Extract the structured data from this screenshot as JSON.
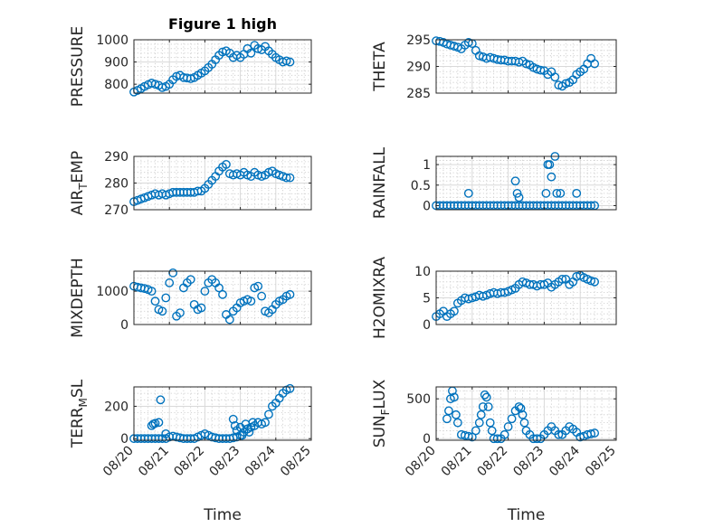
{
  "chart_data": [
    {
      "type": "scatter",
      "title": "Figure 1 high",
      "ylabel": "PRESSURE",
      "xlabel": "",
      "xlim": [
        0,
        5
      ],
      "ylim": [
        760,
        1000
      ],
      "yticks": [
        800,
        900,
        1000
      ],
      "xticks": [
        0,
        1,
        2,
        3,
        4,
        5
      ],
      "xticklabels": [],
      "grid": true,
      "marker_color": "#0072BD",
      "series": [
        {
          "x": [
            0.0,
            0.1,
            0.2,
            0.3,
            0.4,
            0.5,
            0.6,
            0.7,
            0.8,
            0.9,
            1.0,
            1.1,
            1.2,
            1.3,
            1.4,
            1.5,
            1.6,
            1.7,
            1.8,
            1.9,
            2.0,
            2.1,
            2.2,
            2.3,
            2.4,
            2.5,
            2.6,
            2.7,
            2.8,
            2.9,
            3.0,
            3.1,
            3.2,
            3.3,
            3.4,
            3.5,
            3.6,
            3.7,
            3.8,
            3.9,
            4.0,
            4.1,
            4.2,
            4.3,
            4.4
          ],
          "y": [
            765,
            772,
            780,
            790,
            798,
            805,
            800,
            795,
            785,
            790,
            800,
            820,
            835,
            840,
            830,
            828,
            825,
            830,
            840,
            850,
            860,
            875,
            890,
            910,
            930,
            945,
            950,
            940,
            920,
            930,
            920,
            935,
            960,
            940,
            975,
            960,
            955,
            970,
            950,
            935,
            920,
            910,
            900,
            905,
            900
          ]
        }
      ]
    },
    {
      "type": "scatter",
      "title": "",
      "ylabel": "THETA",
      "xlabel": "",
      "xlim": [
        0,
        5
      ],
      "ylim": [
        285,
        295
      ],
      "yticks": [
        285,
        290,
        295
      ],
      "xticks": [
        0,
        1,
        2,
        3,
        4,
        5
      ],
      "xticklabels": [],
      "grid": true,
      "marker_color": "#0072BD",
      "series": [
        {
          "x": [
            0.0,
            0.1,
            0.2,
            0.3,
            0.4,
            0.5,
            0.6,
            0.7,
            0.8,
            0.9,
            1.0,
            1.1,
            1.2,
            1.3,
            1.4,
            1.5,
            1.6,
            1.7,
            1.8,
            1.9,
            2.0,
            2.1,
            2.2,
            2.3,
            2.4,
            2.5,
            2.6,
            2.7,
            2.8,
            2.9,
            3.0,
            3.1,
            3.2,
            3.3,
            3.4,
            3.5,
            3.6,
            3.7,
            3.8,
            3.9,
            4.0,
            4.1,
            4.2,
            4.3,
            4.4
          ],
          "y": [
            294.8,
            294.7,
            294.5,
            294.2,
            294.0,
            293.8,
            293.6,
            293.3,
            294.0,
            294.5,
            294.3,
            293.0,
            292.0,
            291.8,
            291.5,
            291.7,
            291.5,
            291.3,
            291.2,
            291.2,
            291.0,
            291.0,
            291.0,
            290.8,
            291.0,
            290.5,
            290.3,
            289.8,
            289.5,
            289.3,
            289.2,
            288.5,
            289.0,
            288.0,
            286.5,
            286.3,
            286.8,
            287.0,
            287.5,
            288.5,
            289.0,
            289.5,
            290.5,
            291.5,
            290.5
          ]
        }
      ]
    },
    {
      "type": "scatter",
      "title": "",
      "ylabel": "AIR_TEMP",
      "ylabel_parts": [
        "AIR",
        "T",
        "EMP"
      ],
      "xlabel": "",
      "xlim": [
        0,
        5
      ],
      "ylim": [
        270,
        290
      ],
      "yticks": [
        270,
        280,
        290
      ],
      "xticks": [
        0,
        1,
        2,
        3,
        4,
        5
      ],
      "xticklabels": [],
      "grid": true,
      "marker_color": "#0072BD",
      "series": [
        {
          "x": [
            0.0,
            0.1,
            0.2,
            0.3,
            0.4,
            0.5,
            0.6,
            0.7,
            0.8,
            0.9,
            1.0,
            1.1,
            1.2,
            1.3,
            1.4,
            1.5,
            1.6,
            1.7,
            1.8,
            1.9,
            2.0,
            2.1,
            2.2,
            2.3,
            2.4,
            2.5,
            2.6,
            2.7,
            2.8,
            2.9,
            3.0,
            3.1,
            3.2,
            3.3,
            3.4,
            3.5,
            3.6,
            3.7,
            3.8,
            3.9,
            4.0,
            4.1,
            4.2,
            4.3,
            4.4
          ],
          "y": [
            273,
            273.5,
            274,
            274.5,
            275,
            275.5,
            276,
            275.5,
            276,
            275.5,
            276,
            276.5,
            276.5,
            276.5,
            276.5,
            276.5,
            276.5,
            276.5,
            277,
            277,
            278,
            279.5,
            281,
            282.5,
            284.5,
            286,
            287,
            283.5,
            283,
            283.5,
            283,
            284,
            283,
            282.5,
            284,
            283,
            282.5,
            283,
            284,
            284.5,
            283.5,
            283,
            282.5,
            282,
            282
          ]
        }
      ]
    },
    {
      "type": "scatter",
      "title": "",
      "ylabel": "RAINFALL",
      "xlabel": "",
      "xlim": [
        0,
        5
      ],
      "ylim": [
        -0.1,
        1.2
      ],
      "yticks": [
        0,
        0.5,
        1
      ],
      "xticks": [
        0,
        1,
        2,
        3,
        4,
        5
      ],
      "xticklabels": [],
      "grid": true,
      "marker_color": "#0072BD",
      "series": [
        {
          "x": [
            0.0,
            0.1,
            0.2,
            0.3,
            0.4,
            0.5,
            0.6,
            0.7,
            0.8,
            0.9,
            1.0,
            1.1,
            1.2,
            1.3,
            1.4,
            1.5,
            1.6,
            1.7,
            1.8,
            1.9,
            2.0,
            2.1,
            2.2,
            2.3,
            2.4,
            2.5,
            2.6,
            2.7,
            2.8,
            2.9,
            3.0,
            3.1,
            3.2,
            3.3,
            3.4,
            3.5,
            3.6,
            3.7,
            3.8,
            3.9,
            4.0,
            4.1,
            4.2,
            4.3,
            4.4,
            0.9,
            2.2,
            2.25,
            2.3,
            3.05,
            3.1,
            3.15,
            3.2,
            3.3,
            3.35,
            3.45,
            3.9
          ],
          "y": [
            0,
            0,
            0,
            0,
            0,
            0,
            0,
            0,
            0,
            0,
            0,
            0,
            0,
            0,
            0,
            0,
            0,
            0,
            0,
            0,
            0,
            0,
            0,
            0,
            0,
            0,
            0,
            0,
            0,
            0,
            0,
            0,
            0,
            0,
            0,
            0,
            0,
            0,
            0,
            0,
            0,
            0,
            0,
            0,
            0,
            0.3,
            0.6,
            0.3,
            0.2,
            0.3,
            1.0,
            1.0,
            0.7,
            1.2,
            0.3,
            0.3,
            0.3
          ]
        }
      ]
    },
    {
      "type": "scatter",
      "title": "",
      "ylabel": "MIXDEPTH",
      "xlabel": "",
      "xlim": [
        0,
        5
      ],
      "ylim": [
        0,
        1600
      ],
      "yticks": [
        0,
        1000
      ],
      "xticks": [
        0,
        1,
        2,
        3,
        4,
        5
      ],
      "xticklabels": [],
      "grid": true,
      "marker_color": "#0072BD",
      "series": [
        {
          "x": [
            0.0,
            0.1,
            0.2,
            0.3,
            0.4,
            0.5,
            0.6,
            0.7,
            0.8,
            0.9,
            1.0,
            1.1,
            1.2,
            1.3,
            1.4,
            1.5,
            1.6,
            1.7,
            1.8,
            1.9,
            2.0,
            2.1,
            2.2,
            2.3,
            2.4,
            2.5,
            2.6,
            2.7,
            2.8,
            2.9,
            3.0,
            3.1,
            3.2,
            3.3,
            3.4,
            3.5,
            3.6,
            3.7,
            3.8,
            3.9,
            4.0,
            4.1,
            4.2,
            4.3,
            4.4
          ],
          "y": [
            1150,
            1120,
            1100,
            1080,
            1050,
            1000,
            700,
            450,
            400,
            800,
            1250,
            1550,
            250,
            350,
            1100,
            1250,
            1350,
            600,
            450,
            500,
            1000,
            1250,
            1350,
            1250,
            1100,
            900,
            300,
            150,
            400,
            500,
            650,
            700,
            750,
            700,
            1100,
            1150,
            850,
            400,
            350,
            450,
            600,
            700,
            750,
            850,
            900
          ]
        }
      ]
    },
    {
      "type": "scatter",
      "title": "",
      "ylabel": "H2OMIXRA",
      "xlabel": "",
      "xlim": [
        0,
        5
      ],
      "ylim": [
        0,
        10
      ],
      "yticks": [
        0,
        5,
        10
      ],
      "xticks": [
        0,
        1,
        2,
        3,
        4,
        5
      ],
      "xticklabels": [],
      "grid": true,
      "marker_color": "#0072BD",
      "series": [
        {
          "x": [
            0.0,
            0.1,
            0.2,
            0.3,
            0.4,
            0.5,
            0.6,
            0.7,
            0.8,
            0.9,
            1.0,
            1.1,
            1.2,
            1.3,
            1.4,
            1.5,
            1.6,
            1.7,
            1.8,
            1.9,
            2.0,
            2.1,
            2.2,
            2.3,
            2.4,
            2.5,
            2.6,
            2.7,
            2.8,
            2.9,
            3.0,
            3.1,
            3.2,
            3.3,
            3.4,
            3.5,
            3.6,
            3.7,
            3.8,
            3.9,
            4.0,
            4.1,
            4.2,
            4.3,
            4.4
          ],
          "y": [
            1.5,
            2,
            2.5,
            1.5,
            2,
            2.5,
            4,
            4.5,
            5,
            4.8,
            5,
            5.2,
            5.5,
            5.3,
            5.5,
            5.8,
            6,
            5.8,
            6,
            6,
            6.2,
            6.5,
            6.8,
            7.5,
            8,
            7.8,
            7.5,
            7.5,
            7.2,
            7.5,
            7.5,
            7.8,
            7,
            7.5,
            8,
            8.5,
            8.5,
            7.5,
            8,
            9,
            9.2,
            8.8,
            8.5,
            8.2,
            8
          ]
        }
      ]
    },
    {
      "type": "scatter",
      "title": "",
      "ylabel": "TERR_MSL",
      "ylabel_parts": [
        "TERR",
        "M",
        "SL"
      ],
      "xlabel": "Time",
      "xlim": [
        0,
        5
      ],
      "ylim": [
        -10,
        320
      ],
      "yticks": [
        0,
        200
      ],
      "xticks": [
        0,
        1,
        2,
        3,
        4,
        5
      ],
      "xticklabels": [
        "08/20",
        "08/21",
        "08/22",
        "08/23",
        "08/24",
        "08/25"
      ],
      "grid": true,
      "marker_color": "#0072BD",
      "series": [
        {
          "x": [
            0.0,
            0.1,
            0.2,
            0.3,
            0.4,
            0.5,
            0.6,
            0.7,
            0.8,
            0.9,
            1.0,
            1.1,
            1.2,
            1.3,
            1.4,
            1.5,
            1.6,
            1.7,
            1.8,
            1.9,
            2.0,
            2.1,
            2.2,
            2.3,
            2.4,
            2.5,
            2.6,
            2.7,
            2.8,
            2.9,
            3.0,
            3.1,
            3.2,
            3.3,
            3.4,
            3.5,
            3.6,
            3.7,
            3.8,
            3.9,
            4.0,
            4.1,
            4.2,
            4.3,
            4.4,
            0.5,
            0.55,
            0.6,
            0.7,
            0.75,
            0.9,
            2.8,
            2.85,
            2.9,
            3.0,
            3.05,
            3.15,
            3.2,
            3.25,
            3.35
          ],
          "y": [
            0,
            0,
            0,
            0,
            0,
            0,
            0,
            0,
            0,
            0,
            10,
            15,
            10,
            5,
            0,
            0,
            0,
            0,
            10,
            20,
            30,
            20,
            10,
            5,
            0,
            0,
            0,
            0,
            5,
            10,
            20,
            40,
            60,
            70,
            80,
            100,
            90,
            100,
            150,
            200,
            220,
            250,
            280,
            300,
            310,
            80,
            90,
            95,
            100,
            240,
            30,
            120,
            80,
            50,
            70,
            20,
            90,
            60,
            40,
            100
          ]
        }
      ]
    },
    {
      "type": "scatter",
      "title": "",
      "ylabel": "SUN_FLUX",
      "ylabel_parts": [
        "SUN",
        "F",
        "LUX"
      ],
      "xlabel": "Time",
      "xlim": [
        0,
        5
      ],
      "ylim": [
        -20,
        650
      ],
      "yticks": [
        0,
        500
      ],
      "xticks": [
        0,
        1,
        2,
        3,
        4,
        5
      ],
      "xticklabels": [
        "08/20",
        "08/21",
        "08/22",
        "08/23",
        "08/24",
        "08/25"
      ],
      "grid": true,
      "marker_color": "#0072BD",
      "series": [
        {
          "x": [
            0.3,
            0.35,
            0.4,
            0.45,
            0.5,
            0.55,
            0.6,
            0.7,
            0.8,
            0.9,
            1.0,
            1.1,
            1.2,
            1.25,
            1.3,
            1.35,
            1.4,
            1.45,
            1.5,
            1.55,
            1.6,
            1.7,
            1.8,
            1.9,
            2.0,
            2.1,
            2.2,
            2.3,
            2.35,
            2.4,
            2.45,
            2.5,
            2.6,
            2.7,
            2.8,
            2.9,
            3.0,
            3.1,
            3.2,
            3.3,
            3.4,
            3.5,
            3.6,
            3.7,
            3.8,
            3.9,
            4.0,
            4.1,
            4.2,
            4.3,
            4.4
          ],
          "y": [
            250,
            350,
            500,
            600,
            520,
            300,
            200,
            50,
            40,
            30,
            20,
            100,
            200,
            300,
            400,
            550,
            520,
            400,
            200,
            100,
            0,
            0,
            0,
            50,
            150,
            250,
            350,
            400,
            380,
            300,
            200,
            100,
            50,
            0,
            0,
            0,
            50,
            100,
            150,
            100,
            50,
            50,
            100,
            150,
            120,
            80,
            20,
            30,
            50,
            60,
            70
          ]
        }
      ]
    }
  ]
}
